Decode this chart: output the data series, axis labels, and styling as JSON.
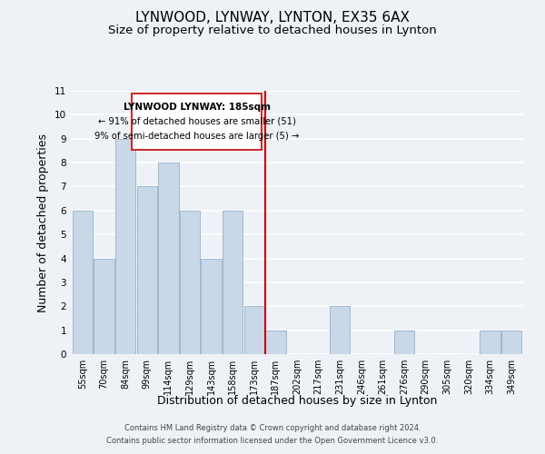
{
  "title": "LYNWOOD, LYNWAY, LYNTON, EX35 6AX",
  "subtitle": "Size of property relative to detached houses in Lynton",
  "xlabel": "Distribution of detached houses by size in Lynton",
  "ylabel": "Number of detached properties",
  "bin_labels": [
    "55sqm",
    "70sqm",
    "84sqm",
    "99sqm",
    "114sqm",
    "129sqm",
    "143sqm",
    "158sqm",
    "173sqm",
    "187sqm",
    "202sqm",
    "217sqm",
    "231sqm",
    "246sqm",
    "261sqm",
    "276sqm",
    "290sqm",
    "305sqm",
    "320sqm",
    "334sqm",
    "349sqm"
  ],
  "bar_heights": [
    6,
    4,
    9,
    7,
    8,
    6,
    4,
    6,
    2,
    1,
    0,
    0,
    2,
    0,
    0,
    1,
    0,
    0,
    0,
    1,
    1
  ],
  "bar_color": "#c8d8e8",
  "bar_edge_color": "#a0b8cc",
  "marker_line_color": "#cc0000",
  "annotation_line1": "LYNWOOD LYNWAY: 185sqm",
  "annotation_line2": "← 91% of detached houses are smaller (51)",
  "annotation_line3": "9% of semi-detached houses are larger (5) →",
  "annotation_box_color": "#ffffff",
  "annotation_box_edge": "#cc0000",
  "ylim": [
    0,
    11
  ],
  "yticks": [
    0,
    1,
    2,
    3,
    4,
    5,
    6,
    7,
    8,
    9,
    10,
    11
  ],
  "footer_line1": "Contains HM Land Registry data © Crown copyright and database right 2024.",
  "footer_line2": "Contains public sector information licensed under the Open Government Licence v3.0.",
  "background_color": "#eef2f7",
  "grid_color": "#ffffff",
  "title_fontsize": 11,
  "subtitle_fontsize": 9.5,
  "axis_label_fontsize": 9,
  "tick_fontsize": 7,
  "footer_fontsize": 6
}
